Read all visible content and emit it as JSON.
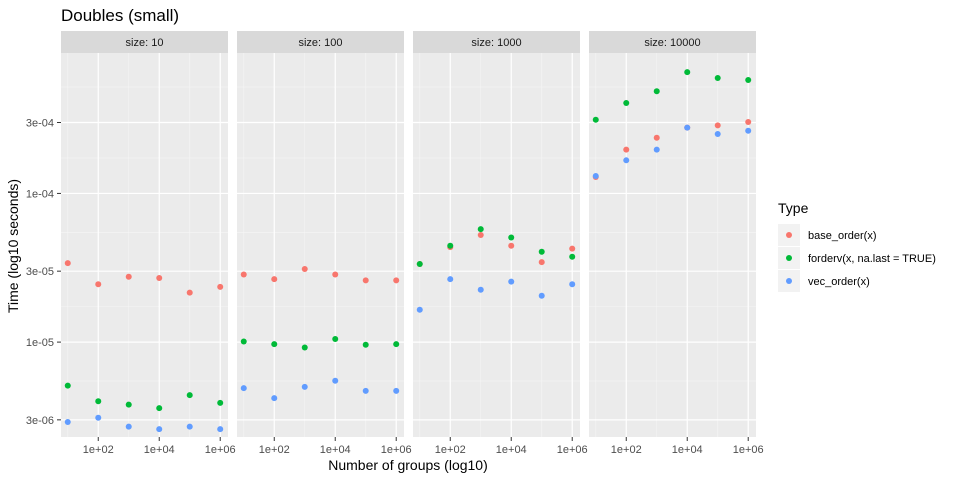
{
  "chart_data": {
    "type": "scatter",
    "title": "Doubles (small)",
    "xlabel": "Number of groups (log10)",
    "ylabel": "Time (log10 seconds)",
    "x_scale": "log10",
    "y_scale": "log10",
    "x_tick_values": [
      100,
      10000,
      1000000
    ],
    "x_tick_labels": [
      "1e+02",
      "1e+04",
      "1e+06"
    ],
    "y_tick_values": [
      3e-06,
      1e-05,
      3e-05,
      0.0001,
      0.0003
    ],
    "y_tick_labels": [
      "3e-06",
      "1e-05",
      "3e-05",
      "1e-04",
      "3e-04"
    ],
    "ylim": [
      2.3e-06,
      0.00088
    ],
    "legend": {
      "title": "Type",
      "placement": "right",
      "entries": [
        {
          "label": "base_order(x)",
          "color": "#F8766D"
        },
        {
          "label": "forderv(x, na.last = TRUE)",
          "color": "#00BA38"
        },
        {
          "label": "vec_order(x)",
          "color": "#619CFF"
        }
      ]
    },
    "panels": [
      {
        "strip": "size: 10",
        "x": [
          10,
          100,
          1000,
          10000,
          100000,
          1000000
        ],
        "series": [
          {
            "type_index": 0,
            "values": [
              3.4e-05,
              2.45e-05,
              2.75e-05,
              2.7e-05,
              2.15e-05,
              2.35e-05
            ]
          },
          {
            "type_index": 1,
            "values": [
              5.1e-06,
              4e-06,
              3.8e-06,
              3.6e-06,
              4.4e-06,
              3.9e-06
            ]
          },
          {
            "type_index": 2,
            "values": [
              2.9e-06,
              3.1e-06,
              2.7e-06,
              2.6e-06,
              2.7e-06,
              2.6e-06
            ]
          }
        ]
      },
      {
        "strip": "size: 100",
        "x": [
          10,
          100,
          1000,
          10000,
          100000,
          1000000
        ],
        "series": [
          {
            "type_index": 0,
            "values": [
              2.85e-05,
              2.65e-05,
              3.1e-05,
              2.85e-05,
              2.6e-05,
              2.6e-05
            ]
          },
          {
            "type_index": 1,
            "values": [
              1.01e-05,
              9.7e-06,
              9.2e-06,
              1.05e-05,
              9.6e-06,
              9.7e-06
            ]
          },
          {
            "type_index": 2,
            "values": [
              4.9e-06,
              4.2e-06,
              5e-06,
              5.5e-06,
              4.7e-06,
              4.7e-06
            ]
          }
        ]
      },
      {
        "strip": "size: 1000",
        "x": [
          10,
          100,
          1000,
          10000,
          100000,
          1000000
        ],
        "series": [
          {
            "type_index": 0,
            "values": [
              3.35e-05,
              4.35e-05,
              5.25e-05,
              4.45e-05,
              3.45e-05,
              4.25e-05
            ]
          },
          {
            "type_index": 1,
            "values": [
              3.35e-05,
              4.45e-05,
              5.75e-05,
              5.05e-05,
              4.05e-05,
              3.75e-05
            ]
          },
          {
            "type_index": 2,
            "values": [
              1.65e-05,
              2.65e-05,
              2.25e-05,
              2.55e-05,
              2.05e-05,
              2.45e-05
            ]
          }
        ]
      },
      {
        "strip": "size: 10000",
        "x": [
          10,
          100,
          1000,
          10000,
          100000,
          1000000
        ],
        "series": [
          {
            "type_index": 0,
            "values": [
              0.000129,
              0.000197,
              0.000237,
              0.000277,
              0.000287,
              0.000302
            ]
          },
          {
            "type_index": 1,
            "values": [
              0.000313,
              0.000406,
              0.000487,
              0.000654,
              0.000597,
              0.000579
            ]
          },
          {
            "type_index": 2,
            "values": [
              0.000131,
              0.000167,
              0.000197,
              0.000277,
              0.000251,
              0.000264
            ]
          }
        ]
      }
    ]
  }
}
